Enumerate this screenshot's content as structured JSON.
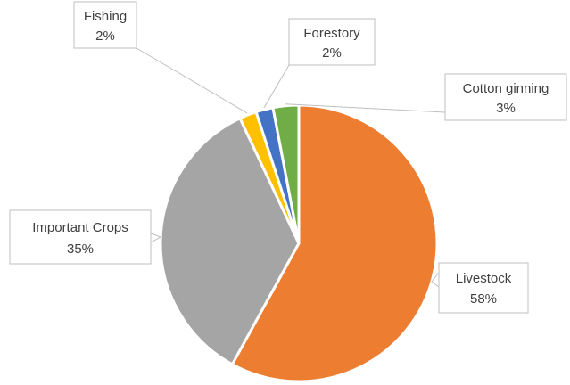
{
  "chart_data": {
    "type": "pie",
    "title": "",
    "start_angle_deg": 0,
    "direction": "clockwise",
    "slices": [
      {
        "label": "Livestock",
        "value": 58,
        "value_label": "58%",
        "color": "#ED7D31"
      },
      {
        "label": "Important Crops",
        "value": 35,
        "value_label": "35%",
        "color": "#A5A5A5"
      },
      {
        "label": "Fishing",
        "value": 2,
        "value_label": "2%",
        "color": "#FFC000"
      },
      {
        "label": "Forestory",
        "value": 2,
        "value_label": "2%",
        "color": "#4472C4"
      },
      {
        "label": "Cotton ginning",
        "value": 3,
        "value_label": "3%",
        "color": "#70AD47"
      }
    ]
  }
}
